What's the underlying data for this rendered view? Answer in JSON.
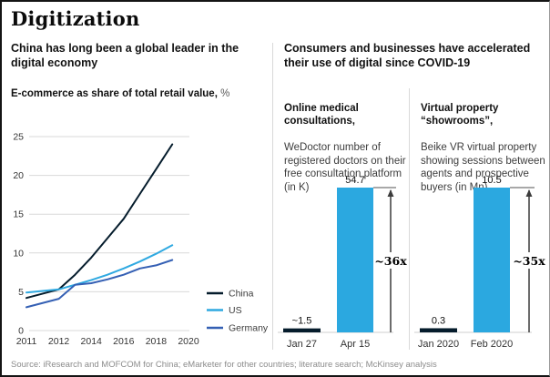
{
  "page": {
    "title": "Digitization",
    "source": "Source: iResearch and MOFCOM for China; eMarketer for other countries; literature search; McKinsey analysis"
  },
  "left_panel": {
    "heading": "China has long been a global leader in the\ndigital economy"
  },
  "right_panel": {
    "heading": "Consumers and businesses have accelerated\ntheir use of digital since COVID-19"
  },
  "colors": {
    "navy": "#051c2c",
    "cyan": "#2ba8e0",
    "blue": "#3560b4",
    "grid": "#d9d9d9",
    "tick_text": "#333333"
  },
  "chart_data": [
    {
      "type": "line",
      "title": "E-commerce as share of total retail value,",
      "unit": "%",
      "x": [
        2011,
        2012,
        2013,
        2014,
        2015,
        2016,
        2017,
        2018,
        2019
      ],
      "x_tick_labels": [
        "2011",
        "2012",
        "2014",
        "2016",
        "2018",
        "2020"
      ],
      "ylim": [
        0,
        25
      ],
      "yticks": [
        0,
        5,
        10,
        15,
        20,
        25
      ],
      "grid": "horizontal",
      "legend_position": "right-bottom",
      "series": [
        {
          "name": "China",
          "color": "#051c2c",
          "values": [
            4.2,
            5.3,
            7.2,
            9.4,
            11.9,
            14.4,
            17.6,
            20.8,
            24.0
          ]
        },
        {
          "name": "US",
          "color": "#2fa9e1",
          "values": [
            4.9,
            5.3,
            5.9,
            6.5,
            7.2,
            8.0,
            8.9,
            9.9,
            11.0
          ]
        },
        {
          "name": "Germany",
          "color": "#3560b4",
          "values": [
            3.0,
            4.1,
            5.9,
            6.1,
            6.6,
            7.2,
            8.0,
            8.4,
            9.1
          ]
        }
      ]
    },
    {
      "type": "bar",
      "title_bold": "Online medical\nconsultations,",
      "title_rest": "WeDoctor number of\nregistered doctors on their\nfree consultation platform\n(in K)",
      "categories": [
        "Jan 27",
        "Apr 15"
      ],
      "values": [
        1.5,
        54.7
      ],
      "value_labels": [
        "~1.5",
        "54.7"
      ],
      "bar_colors": [
        "#051c2c",
        "#2ba8e0"
      ],
      "annotation": "~36x"
    },
    {
      "type": "bar",
      "title_bold": "Virtual property\n“showrooms”,",
      "title_rest": "Beike VR virtual property\nshowing sessions between\nagents and prospective\nbuyers (in Mn)",
      "categories": [
        "Jan 2020",
        "Feb 2020"
      ],
      "values": [
        0.3,
        10.5
      ],
      "value_labels": [
        "0.3",
        "10.5"
      ],
      "bar_colors": [
        "#051c2c",
        "#2ba8e0"
      ],
      "annotation": "~35x"
    }
  ]
}
